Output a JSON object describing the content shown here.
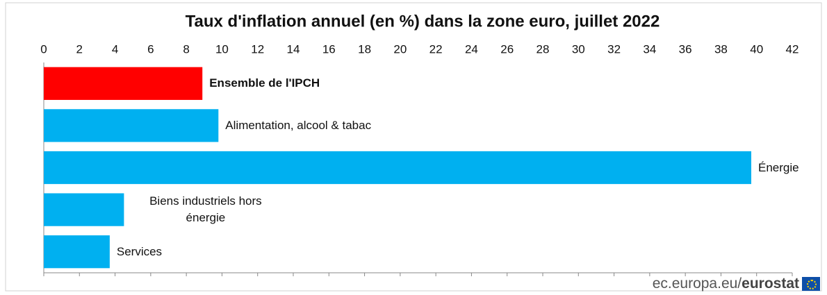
{
  "chart_data": {
    "type": "bar",
    "orientation": "horizontal",
    "title": "Taux d'inflation annuel (en %) dans la zone euro, juillet 2022",
    "categories": [
      "Ensemble de l'IPCH",
      "Alimentation, alcool & tabac",
      "Énergie",
      "Biens industriels hors énergie",
      "Services"
    ],
    "values": [
      8.9,
      9.8,
      39.7,
      4.5,
      3.7
    ],
    "colors": [
      "#ff0000",
      "#00b0f0",
      "#00b0f0",
      "#00b0f0",
      "#00b0f0"
    ],
    "xlim": [
      0,
      42
    ],
    "xticks": [
      0,
      2,
      4,
      6,
      8,
      10,
      12,
      14,
      16,
      18,
      20,
      22,
      24,
      26,
      28,
      30,
      32,
      34,
      36,
      38,
      40,
      42
    ],
    "xaxis_position": "top"
  },
  "source": {
    "site": "ec.europa.eu/",
    "brand": "eurostat"
  }
}
